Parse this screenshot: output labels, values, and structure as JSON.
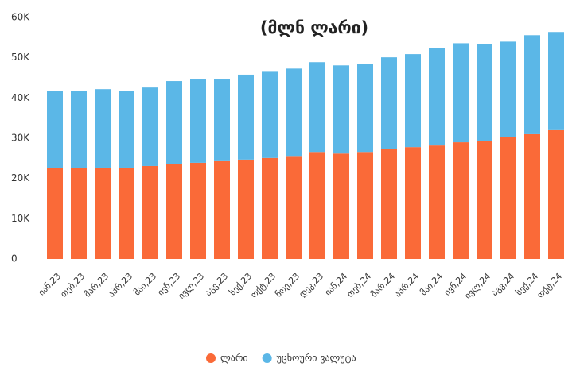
{
  "chart_data": {
    "type": "stacked_bar",
    "title": "(მლნ ლარი)",
    "categories": [
      "იან,23",
      "თებ,23",
      "მარ,23",
      "აპრ,23",
      "მაი,23",
      "ივნ,23",
      "ივლ,23",
      "აგვ,23",
      "სექ,23",
      "ოქტ,23",
      "ნოე,23",
      "დეკ,23",
      "იან,24",
      "თებ,24",
      "მარ,24",
      "აპრ,24",
      "მაი,24",
      "ივნ,24",
      "ივლ,24",
      "აგვ,24",
      "სექ,24",
      "ოქტ,24"
    ],
    "series": [
      {
        "name": "ლარი",
        "color": "#fa6a38",
        "values": [
          22500,
          22500,
          22700,
          22700,
          23100,
          23500,
          23900,
          24300,
          24700,
          25100,
          25400,
          26600,
          26200,
          26600,
          27400,
          27800,
          28200,
          29000,
          29400,
          30200,
          31000,
          32000
        ]
      },
      {
        "name": "უცხოური ვალუტა",
        "color": "#5bb7e7",
        "values": [
          19300,
          19300,
          19500,
          19100,
          19500,
          20700,
          20700,
          20300,
          21100,
          21400,
          21900,
          22300,
          21900,
          21900,
          22700,
          23100,
          24300,
          24600,
          23900,
          23800,
          24600,
          24400
        ]
      }
    ],
    "ylim": [
      0,
      60000
    ],
    "yticks": [
      0,
      {
        "value": 10000,
        "label": "10K"
      },
      {
        "value": 20000,
        "label": "20K"
      },
      {
        "value": 30000,
        "label": "30K"
      },
      {
        "value": 40000,
        "label": "40K"
      },
      {
        "value": 50000,
        "label": "50K"
      },
      {
        "value": 60000,
        "label": "60K"
      }
    ],
    "legend": "bottom"
  }
}
